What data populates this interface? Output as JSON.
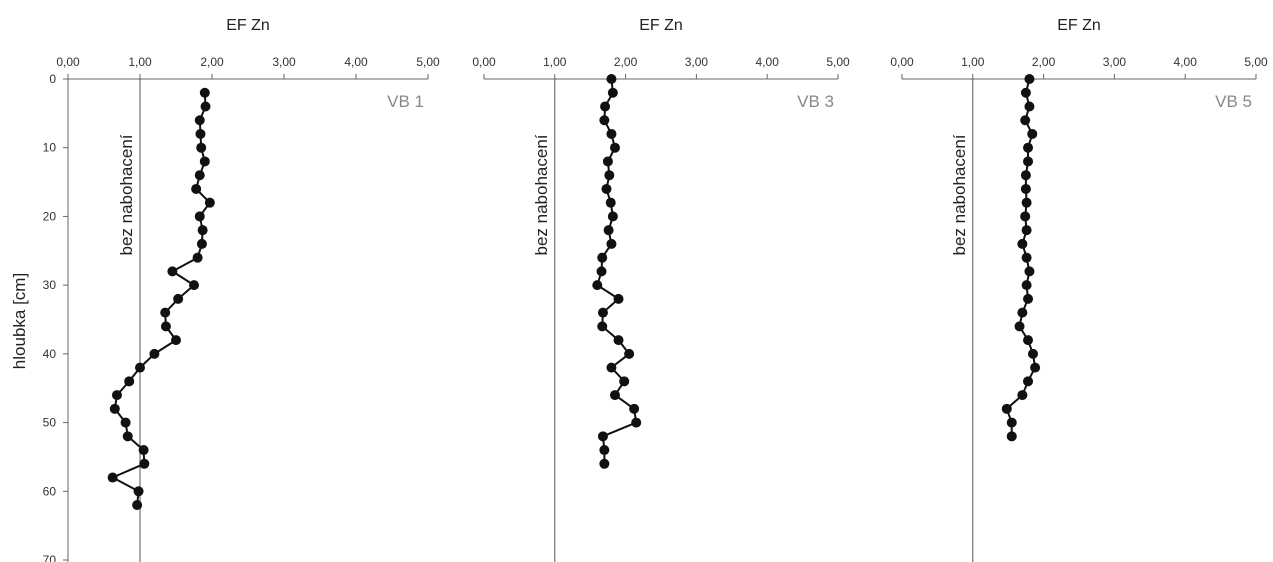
{
  "ylabel": "hloubka [cm]",
  "chart_data": [
    {
      "type": "line",
      "title": "EF Zn",
      "panel_label": "VB 1",
      "reference_label": "bez nabohacení",
      "reference_x": 1.0,
      "xlim": [
        0,
        5
      ],
      "ylim": [
        0,
        70
      ],
      "x_ticks": [
        "0,00",
        "1,00",
        "2,00",
        "3,00",
        "4,00",
        "5,00"
      ],
      "y_ticks": [
        "0",
        "10",
        "20",
        "30",
        "40",
        "50",
        "60",
        "70"
      ],
      "series": [
        {
          "x": [
            1.9,
            1.91,
            1.83,
            1.84,
            1.85,
            1.9,
            1.83,
            1.78,
            1.97,
            1.83,
            1.87,
            1.86,
            1.8,
            1.45,
            1.75,
            1.53,
            1.35,
            1.36,
            1.5,
            1.2,
            1.0,
            0.85,
            0.68,
            0.65,
            0.8,
            0.83,
            1.05,
            1.06,
            0.62,
            0.98,
            0.96
          ],
          "y": [
            2,
            4,
            6,
            8,
            10,
            12,
            14,
            16,
            18,
            20,
            22,
            24,
            26,
            28,
            30,
            32,
            34,
            36,
            38,
            40,
            42,
            44,
            46,
            48,
            50,
            52,
            54,
            56,
            58,
            60,
            62
          ]
        }
      ]
    },
    {
      "type": "line",
      "title": "EF Zn",
      "panel_label": "VB 3",
      "reference_label": "bez nabohacení",
      "reference_x": 1.0,
      "xlim": [
        0,
        5
      ],
      "ylim": [
        0,
        70
      ],
      "x_ticks": [
        "0,00",
        "1,00",
        "2,00",
        "3,00",
        "4,00",
        "5,00"
      ],
      "y_ticks": [
        "0",
        "10",
        "20",
        "30",
        "40",
        "50",
        "60",
        "70"
      ],
      "series": [
        {
          "x": [
            1.8,
            1.82,
            1.71,
            1.7,
            1.8,
            1.85,
            1.75,
            1.77,
            1.73,
            1.79,
            1.82,
            1.76,
            1.8,
            1.67,
            1.66,
            1.6,
            1.9,
            1.68,
            1.67,
            1.9,
            2.05,
            1.8,
            1.98,
            1.85,
            2.12,
            2.15,
            1.68,
            1.7,
            1.7
          ],
          "y": [
            0,
            2,
            4,
            6,
            8,
            10,
            12,
            14,
            16,
            18,
            20,
            22,
            24,
            26,
            28,
            30,
            32,
            34,
            36,
            38,
            40,
            42,
            44,
            46,
            48,
            50,
            52,
            54,
            56
          ]
        }
      ]
    },
    {
      "type": "line",
      "title": "EF Zn",
      "panel_label": "VB 5",
      "reference_label": "bez nabohacení",
      "reference_x": 1.0,
      "xlim": [
        0,
        5
      ],
      "ylim": [
        0,
        70
      ],
      "x_ticks": [
        "0,00",
        "1,00",
        "2,00",
        "3,00",
        "4,00",
        "5,00"
      ],
      "y_ticks": [
        "0",
        "10",
        "20",
        "30",
        "40",
        "50",
        "60",
        "70"
      ],
      "series": [
        {
          "x": [
            1.8,
            1.75,
            1.8,
            1.74,
            1.84,
            1.78,
            1.78,
            1.75,
            1.75,
            1.76,
            1.74,
            1.76,
            1.7,
            1.76,
            1.8,
            1.76,
            1.78,
            1.7,
            1.66,
            1.78,
            1.85,
            1.88,
            1.78,
            1.7,
            1.48,
            1.55,
            1.55
          ],
          "y": [
            0,
            2,
            4,
            6,
            8,
            10,
            12,
            14,
            16,
            18,
            20,
            22,
            24,
            26,
            28,
            30,
            32,
            34,
            36,
            38,
            40,
            42,
            44,
            46,
            48,
            50,
            52
          ]
        }
      ]
    }
  ]
}
